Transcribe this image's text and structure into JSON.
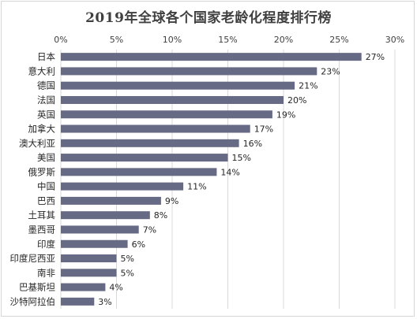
{
  "chart_data": {
    "type": "bar",
    "orientation": "horizontal",
    "title": "2019年全球各个国家老龄化程度排行榜",
    "categories": [
      "日本",
      "意大利",
      "德国",
      "法国",
      "英国",
      "加拿大",
      "澳大利亚",
      "美国",
      "俄罗斯",
      "中国",
      "巴西",
      "土耳其",
      "墨西哥",
      "印度",
      "印度尼西亚",
      "南非",
      "巴基斯坦",
      "沙特阿拉伯"
    ],
    "values": [
      27,
      23,
      21,
      20,
      19,
      17,
      16,
      15,
      14,
      11,
      9,
      8,
      7,
      6,
      5,
      5,
      4,
      3
    ],
    "value_suffix": "%",
    "xlim": [
      0,
      30
    ],
    "xticks": [
      "0%",
      "5%",
      "10%",
      "15%",
      "20%",
      "25%",
      "30%"
    ],
    "xaxis_position": "top",
    "grid": true,
    "bar_color": "#666a85"
  }
}
